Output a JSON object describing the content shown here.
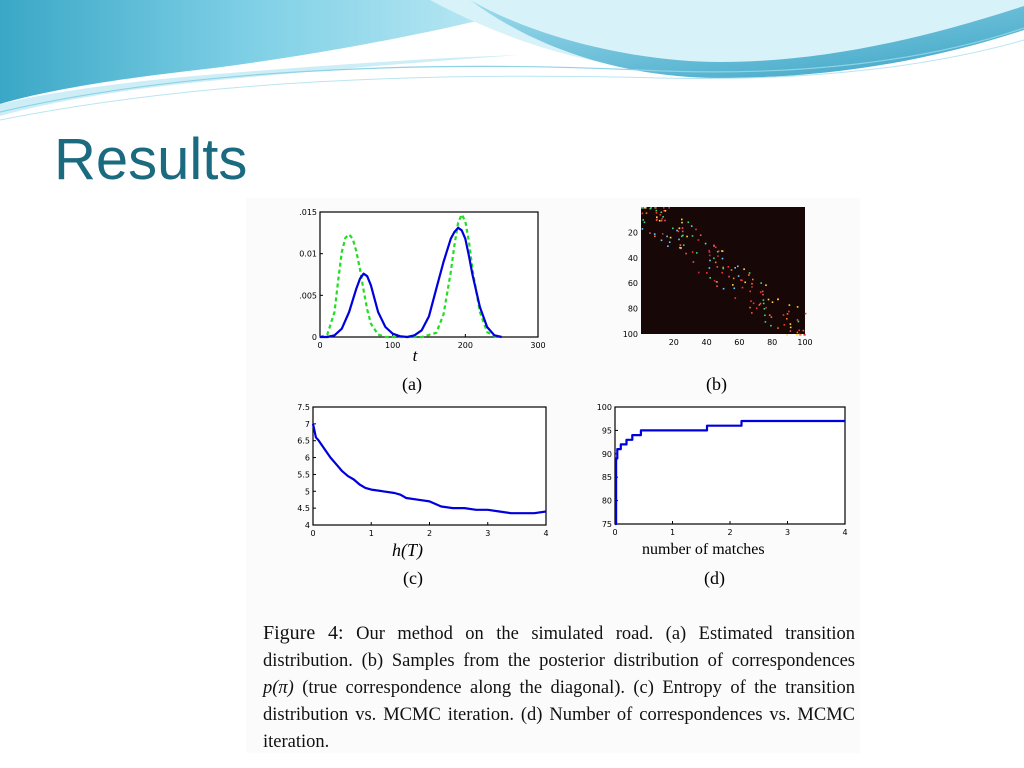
{
  "slide": {
    "title": "Results"
  },
  "colors": {
    "title": "#1a6a80",
    "banner_dark": "#2a9fc0",
    "banner_light": "#bfe9f5",
    "series_blue": "#0000dd",
    "series_green": "#22dd22"
  },
  "chart_data": [
    {
      "label": "(a)",
      "type": "line",
      "xlabel": "t",
      "xlim": [
        0,
        300
      ],
      "ylim": [
        0,
        0.015
      ],
      "xticks": [
        "0",
        "100",
        "200",
        "300"
      ],
      "yticks": [
        ".015",
        "0.01",
        ".005",
        "0"
      ],
      "series": [
        {
          "color": "#0000dd",
          "style": "solid",
          "x": [
            0,
            10,
            20,
            30,
            40,
            50,
            55,
            60,
            65,
            70,
            75,
            80,
            90,
            100,
            110,
            120,
            130,
            140,
            150,
            160,
            170,
            180,
            185,
            190,
            195,
            200,
            205,
            210,
            220,
            230,
            240,
            250
          ],
          "y": [
            0.0,
            0.0,
            0.0002,
            0.001,
            0.003,
            0.0058,
            0.007,
            0.0076,
            0.0073,
            0.0062,
            0.0046,
            0.003,
            0.0012,
            0.0004,
            0.0001,
            0.0,
            0.0002,
            0.0008,
            0.0025,
            0.0058,
            0.009,
            0.0118,
            0.0126,
            0.0131,
            0.0128,
            0.0118,
            0.0097,
            0.0074,
            0.0036,
            0.0012,
            0.0002,
            0.0
          ]
        },
        {
          "color": "#22dd22",
          "style": "dashed",
          "x": [
            0,
            10,
            20,
            25,
            30,
            35,
            40,
            45,
            50,
            55,
            60,
            65,
            70,
            80,
            90,
            100,
            120,
            140,
            160,
            170,
            180,
            185,
            190,
            195,
            200,
            205,
            210,
            220,
            230,
            240,
            250
          ],
          "y": [
            0.0,
            0.0003,
            0.003,
            0.0068,
            0.0102,
            0.0119,
            0.0123,
            0.0118,
            0.0103,
            0.0081,
            0.0056,
            0.0033,
            0.0016,
            0.0003,
            0.0,
            0.0,
            0.0,
            0.0,
            0.0005,
            0.0027,
            0.0078,
            0.011,
            0.0137,
            0.0147,
            0.0139,
            0.0114,
            0.008,
            0.003,
            0.0006,
            0.0001,
            0.0
          ]
        }
      ]
    },
    {
      "label": "(b)",
      "type": "scatter",
      "xlim": [
        0,
        100
      ],
      "ylim": [
        0,
        100
      ],
      "xticks": [
        "20",
        "40",
        "60",
        "80",
        "100"
      ],
      "yticks": [
        "20",
        "40",
        "60",
        "80",
        "100"
      ],
      "background": "#170707",
      "description": "noisy points concentrated along the diagonal"
    },
    {
      "label": "(c)",
      "type": "line",
      "xlabel": "h(T)",
      "xlim": [
        0,
        4
      ],
      "ylim": [
        4,
        7.5
      ],
      "xticks": [
        "0",
        "1",
        "2",
        "3",
        "4"
      ],
      "yticks": [
        "7.5",
        "7",
        "6.5",
        "6",
        "5.5",
        "5",
        "4.5",
        "4"
      ],
      "series": [
        {
          "color": "#0000dd",
          "x": [
            0,
            0.05,
            0.1,
            0.2,
            0.3,
            0.4,
            0.5,
            0.6,
            0.7,
            0.8,
            0.9,
            1.0,
            1.2,
            1.4,
            1.5,
            1.6,
            1.8,
            2.0,
            2.2,
            2.4,
            2.6,
            2.8,
            3.0,
            3.2,
            3.4,
            3.6,
            3.8,
            4.0
          ],
          "y": [
            7.0,
            6.6,
            6.5,
            6.25,
            6.0,
            5.8,
            5.6,
            5.45,
            5.35,
            5.2,
            5.1,
            5.05,
            5.0,
            4.95,
            4.9,
            4.8,
            4.75,
            4.7,
            4.55,
            4.5,
            4.5,
            4.45,
            4.45,
            4.4,
            4.35,
            4.35,
            4.35,
            4.4
          ]
        }
      ]
    },
    {
      "label": "(d)",
      "type": "line",
      "xlabel": "number of matches",
      "xlim": [
        0,
        4
      ],
      "ylim": [
        75,
        100
      ],
      "xticks": [
        "0",
        "1",
        "2",
        "3",
        "4"
      ],
      "yticks": [
        "100",
        "95",
        "90",
        "85",
        "80",
        "75"
      ],
      "series": [
        {
          "color": "#0000dd",
          "style": "step",
          "x": [
            0,
            0.02,
            0.04,
            0.1,
            0.2,
            0.3,
            0.45,
            0.6,
            1.0,
            1.5,
            1.6,
            2.0,
            2.2,
            3.0,
            4.0
          ],
          "y": [
            75,
            89,
            91,
            92,
            93,
            94,
            95,
            95,
            95,
            95,
            96,
            96,
            97,
            97,
            97
          ]
        }
      ]
    }
  ],
  "caption": {
    "figure_number": "Figure 4:",
    "before_math": "Our method on the simulated road. (a) Estimated transition distribution. (b) Samples from the posterior distribution of correspondences ",
    "math": "p(π)",
    "after_math": " (true correspondence along the diagonal). (c) Entropy of the transition distribution vs. MCMC iteration. (d) Number of correspondences vs. MCMC iteration."
  }
}
